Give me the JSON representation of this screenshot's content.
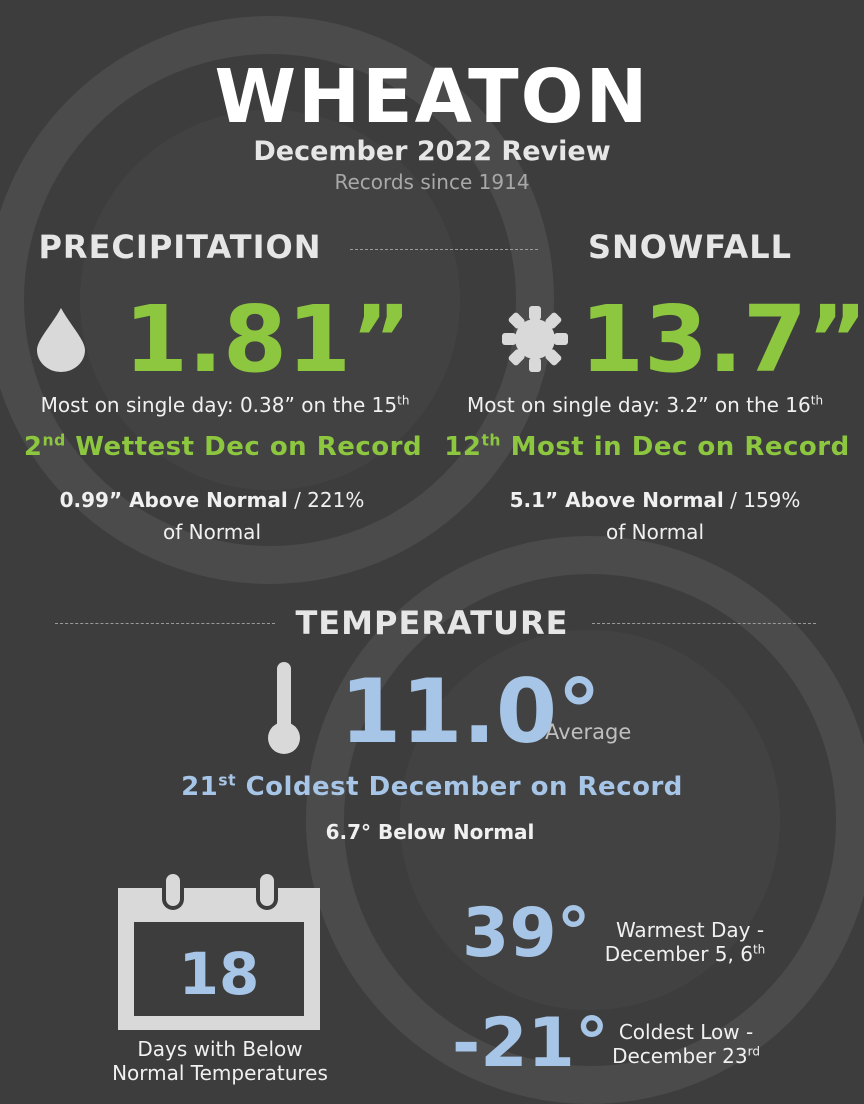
{
  "header": {
    "title": "WHEATON",
    "subtitle": "December 2022 Review",
    "records_since": "Records since 1914"
  },
  "precipitation": {
    "heading": "PRECIPITATION",
    "value": "1.81”",
    "single_day_text": "Most on single day: 0.38” on the 15",
    "single_day_suffix": "th",
    "rank_num": "2",
    "rank_suffix": "nd",
    "rank_text": " Wettest Dec on Record",
    "above_normal_bold": "0.99” Above Normal",
    "above_normal_rest": " / 221%",
    "of_normal": "of Normal"
  },
  "snowfall": {
    "heading": "SNOWFALL",
    "value": "13.7”",
    "single_day_text": "Most on single day: 3.2” on the 16",
    "single_day_suffix": "th",
    "rank_num": "12",
    "rank_suffix": "th",
    "rank_text": " Most in Dec on Record",
    "above_normal_bold": "5.1” Above Normal",
    "above_normal_rest": " / 159%",
    "of_normal": "of Normal"
  },
  "temperature": {
    "heading": "TEMPERATURE",
    "value": "11.0°",
    "value_label": "Average",
    "rank_num": "21",
    "rank_suffix": "st",
    "rank_text": " Coldest December on Record",
    "below_normal": "6.7° Below Normal",
    "days_below_count": "18",
    "days_below_line1": "Days with Below",
    "days_below_line2": "Normal Temperatures",
    "warmest_value": "39°",
    "warmest_line1": "Warmest Day -",
    "warmest_line2": "December 5, 6",
    "warmest_suffix": "th",
    "coldest_value": "-21°",
    "coldest_line1": "Coldest Low -",
    "coldest_line2": "December 23",
    "coldest_suffix": "rd"
  },
  "colors": {
    "background": "#3d3d3d",
    "green": "#8dc63f",
    "blue": "#a7c5e6",
    "icon_grey": "#d9d9d9"
  },
  "icons": [
    "raindrop-icon",
    "snowflake-icon",
    "thermometer-icon",
    "calendar-icon"
  ]
}
